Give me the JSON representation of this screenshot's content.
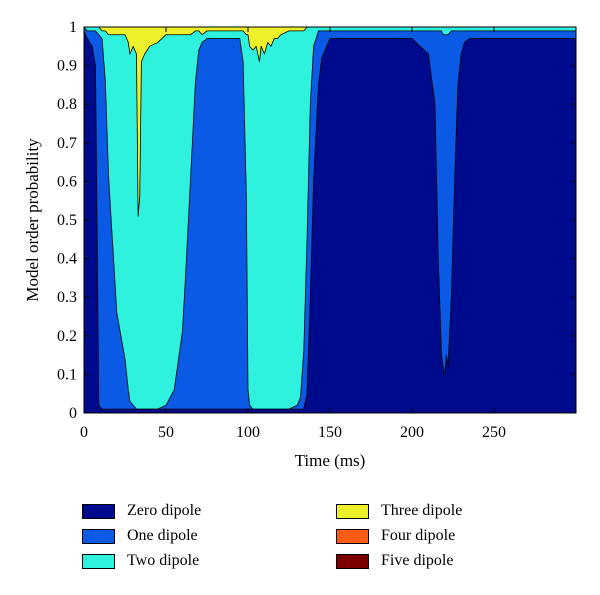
{
  "chart_data": {
    "type": "area",
    "stacked": true,
    "xlabel": "Time (ms)",
    "ylabel": "Model order probability",
    "xlim": [
      0,
      300
    ],
    "ylim": [
      0,
      1
    ],
    "xticks": [
      "0",
      "50",
      "100",
      "150",
      "200",
      "250"
    ],
    "xtick_values": [
      0,
      50,
      100,
      150,
      200,
      250
    ],
    "yticks": [
      "0",
      "0.1",
      "0.2",
      "0.3",
      "0.4",
      "0.5",
      "0.6",
      "0.7",
      "0.8",
      "0.9",
      "1"
    ],
    "ytick_values": [
      0,
      0.1,
      0.2,
      0.3,
      0.4,
      0.5,
      0.6,
      0.7,
      0.8,
      0.9,
      1
    ],
    "legend_position": "below",
    "x": [
      0,
      2,
      5,
      7,
      9,
      11,
      13,
      15,
      20,
      25,
      27,
      28,
      30,
      32,
      33,
      34,
      35,
      37,
      40,
      45,
      50,
      55,
      60,
      62,
      65,
      68,
      70,
      72,
      75,
      78,
      80,
      85,
      90,
      95,
      97,
      99,
      100,
      101,
      103,
      105,
      107,
      108,
      110,
      112,
      114,
      116,
      118,
      120,
      125,
      130,
      132,
      134,
      136,
      138,
      140,
      143,
      145,
      148,
      150,
      155,
      160,
      170,
      180,
      190,
      200,
      210,
      214,
      216,
      218,
      219,
      220,
      221,
      222,
      224,
      226,
      228,
      230,
      232,
      235,
      240,
      250,
      260,
      270,
      280,
      290,
      299
    ],
    "series": [
      {
        "name": "Zero dipole",
        "values": [
          0.99,
          0.97,
          0.95,
          0.9,
          0.02,
          0.01,
          0.01,
          0.01,
          0.01,
          0.01,
          0.01,
          0.01,
          0.01,
          0.01,
          0.01,
          0.01,
          0.01,
          0.01,
          0.01,
          0.01,
          0.01,
          0.01,
          0.01,
          0.01,
          0.01,
          0.01,
          0.01,
          0.01,
          0.01,
          0.01,
          0.01,
          0.01,
          0.01,
          0.01,
          0.01,
          0.01,
          0.01,
          0.01,
          0.01,
          0.01,
          0.01,
          0.01,
          0.01,
          0.01,
          0.01,
          0.01,
          0.01,
          0.01,
          0.01,
          0.01,
          0.01,
          0.01,
          0.05,
          0.3,
          0.6,
          0.85,
          0.92,
          0.95,
          0.97,
          0.97,
          0.97,
          0.97,
          0.97,
          0.97,
          0.97,
          0.93,
          0.8,
          0.4,
          0.15,
          0.12,
          0.1,
          0.15,
          0.12,
          0.3,
          0.6,
          0.85,
          0.93,
          0.96,
          0.97,
          0.97,
          0.97,
          0.97,
          0.97,
          0.97,
          0.97,
          0.97
        ]
      },
      {
        "name": "One dipole",
        "values": [
          0.01,
          0.02,
          0.04,
          0.09,
          0.96,
          0.96,
          0.85,
          0.6,
          0.25,
          0.13,
          0.05,
          0.02,
          0.01,
          0.0,
          0.0,
          0.0,
          0.0,
          0.0,
          0.0,
          0.0,
          0.01,
          0.05,
          0.2,
          0.35,
          0.6,
          0.85,
          0.93,
          0.95,
          0.96,
          0.96,
          0.96,
          0.96,
          0.96,
          0.96,
          0.9,
          0.55,
          0.05,
          0.01,
          0.0,
          0.0,
          0.0,
          0.0,
          0.0,
          0.0,
          0.0,
          0.0,
          0.0,
          0.0,
          0.0,
          0.01,
          0.03,
          0.15,
          0.4,
          0.5,
          0.35,
          0.14,
          0.07,
          0.04,
          0.02,
          0.02,
          0.02,
          0.02,
          0.02,
          0.02,
          0.02,
          0.06,
          0.19,
          0.59,
          0.84,
          0.86,
          0.88,
          0.83,
          0.86,
          0.69,
          0.39,
          0.14,
          0.06,
          0.03,
          0.02,
          0.02,
          0.02,
          0.02,
          0.02,
          0.02,
          0.02,
          0.02
        ]
      },
      {
        "name": "Two dipole",
        "values": [
          0.0,
          0.01,
          0.01,
          0.01,
          0.02,
          0.02,
          0.13,
          0.37,
          0.72,
          0.84,
          0.9,
          0.9,
          0.93,
          0.92,
          0.5,
          0.55,
          0.9,
          0.92,
          0.94,
          0.95,
          0.96,
          0.92,
          0.77,
          0.62,
          0.37,
          0.13,
          0.05,
          0.02,
          0.02,
          0.02,
          0.02,
          0.02,
          0.02,
          0.02,
          0.08,
          0.42,
          0.92,
          0.93,
          0.93,
          0.94,
          0.9,
          0.94,
          0.92,
          0.95,
          0.94,
          0.96,
          0.96,
          0.97,
          0.98,
          0.97,
          0.95,
          0.83,
          0.55,
          0.2,
          0.05,
          0.01,
          0.01,
          0.01,
          0.01,
          0.01,
          0.01,
          0.01,
          0.01,
          0.01,
          0.01,
          0.01,
          0.01,
          0.01,
          0.01,
          0.02,
          0.02,
          0.02,
          0.02,
          0.01,
          0.01,
          0.01,
          0.01,
          0.01,
          0.01,
          0.01,
          0.01,
          0.01,
          0.01,
          0.01,
          0.01,
          0.01
        ]
      },
      {
        "name": "Three dipole",
        "values": [
          0.0,
          0.0,
          0.0,
          0.0,
          0.0,
          0.01,
          0.01,
          0.02,
          0.02,
          0.02,
          0.04,
          0.07,
          0.05,
          0.07,
          0.49,
          0.44,
          0.09,
          0.07,
          0.05,
          0.04,
          0.02,
          0.02,
          0.02,
          0.02,
          0.02,
          0.01,
          0.01,
          0.02,
          0.01,
          0.01,
          0.01,
          0.01,
          0.01,
          0.01,
          0.01,
          0.02,
          0.02,
          0.05,
          0.06,
          0.05,
          0.09,
          0.05,
          0.07,
          0.04,
          0.05,
          0.03,
          0.03,
          0.02,
          0.01,
          0.01,
          0.01,
          0.01,
          0.0,
          0.0,
          0.0,
          0.0,
          0.0,
          0.0,
          0.0,
          0.0,
          0.0,
          0.0,
          0.0,
          0.0,
          0.0,
          0.0,
          0.0,
          0.0,
          0.0,
          0.0,
          0.0,
          0.0,
          0.0,
          0.0,
          0.0,
          0.0,
          0.0,
          0.0,
          0.0,
          0.0,
          0.0,
          0.0,
          0.0,
          0.0,
          0.0,
          0.0
        ]
      },
      {
        "name": "Four dipole",
        "values": [
          0,
          0,
          0,
          0,
          0,
          0,
          0,
          0,
          0,
          0,
          0,
          0,
          0,
          0,
          0,
          0,
          0,
          0,
          0,
          0,
          0,
          0,
          0,
          0,
          0,
          0,
          0,
          0,
          0,
          0,
          0,
          0,
          0,
          0,
          0,
          0,
          0,
          0,
          0,
          0,
          0,
          0,
          0,
          0,
          0,
          0,
          0,
          0,
          0,
          0,
          0,
          0,
          0,
          0,
          0,
          0,
          0,
          0,
          0,
          0,
          0,
          0,
          0,
          0,
          0,
          0,
          0,
          0,
          0,
          0,
          0,
          0,
          0,
          0,
          0,
          0,
          0,
          0,
          0,
          0,
          0,
          0,
          0,
          0,
          0,
          0
        ]
      },
      {
        "name": "Five dipole",
        "values": [
          0,
          0,
          0,
          0,
          0,
          0,
          0,
          0,
          0,
          0,
          0,
          0,
          0,
          0,
          0,
          0,
          0,
          0,
          0,
          0,
          0,
          0,
          0,
          0,
          0,
          0,
          0,
          0,
          0,
          0,
          0,
          0,
          0,
          0,
          0,
          0,
          0,
          0,
          0,
          0,
          0,
          0,
          0,
          0,
          0,
          0,
          0,
          0,
          0,
          0,
          0,
          0,
          0,
          0,
          0,
          0,
          0,
          0,
          0,
          0,
          0,
          0,
          0,
          0,
          0,
          0,
          0,
          0,
          0,
          0,
          0,
          0,
          0,
          0,
          0,
          0,
          0,
          0,
          0,
          0,
          0,
          0,
          0,
          0,
          0,
          0
        ]
      }
    ],
    "colors": [
      "#000a8c",
      "#0a5ae6",
      "#2ef2de",
      "#eef02a",
      "#ff5b14",
      "#7c0000"
    ]
  }
}
